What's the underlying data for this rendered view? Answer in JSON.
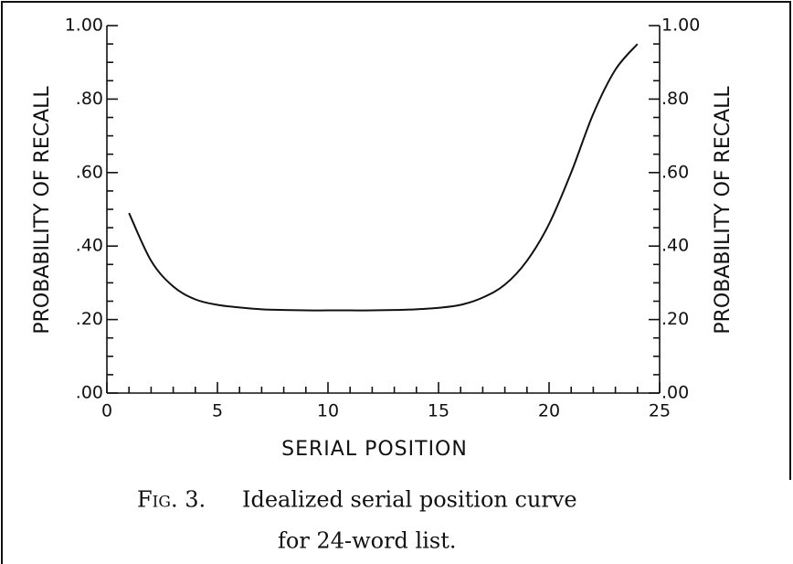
{
  "chart_data": {
    "type": "line",
    "x": [
      1,
      2,
      3,
      4,
      5,
      6,
      7,
      8,
      9,
      10,
      11,
      12,
      13,
      14,
      15,
      16,
      17,
      18,
      19,
      20,
      21,
      22,
      23,
      24
    ],
    "series": [
      {
        "color": "#111111",
        "values": [
          0.49,
          0.36,
          0.29,
          0.255,
          0.24,
          0.233,
          0.228,
          0.226,
          0.225,
          0.225,
          0.225,
          0.225,
          0.226,
          0.228,
          0.232,
          0.24,
          0.26,
          0.295,
          0.36,
          0.46,
          0.6,
          0.76,
          0.88,
          0.95
        ]
      }
    ],
    "xlabel": "SERIAL POSITION",
    "ylabel": "PROBABILITY OF RECALL",
    "y2label": "PROBABILITY OF RECALL",
    "xlim": [
      0,
      25
    ],
    "xticks": [
      0,
      5,
      10,
      15,
      20,
      25
    ],
    "xminorticks": [
      1,
      2,
      3,
      4,
      6,
      7,
      8,
      9,
      11,
      12,
      13,
      14,
      16,
      17,
      18,
      19,
      21,
      22,
      23,
      24
    ],
    "ylim": [
      0,
      1
    ],
    "yticks": [
      {
        "value": 0,
        "label": ".00"
      },
      {
        "value": 0.2,
        "label": ".20"
      },
      {
        "value": 0.4,
        "label": ".40"
      },
      {
        "value": 0.6,
        "label": ".60"
      },
      {
        "value": 0.8,
        "label": ".80"
      },
      {
        "value": 1,
        "label": "1.00"
      }
    ],
    "yminorticks": [
      0.05,
      0.1,
      0.15,
      0.25,
      0.3,
      0.35,
      0.45,
      0.5,
      0.55,
      0.65,
      0.7,
      0.75,
      0.85,
      0.9,
      0.95
    ],
    "caption": {
      "label": "Fig. 3.",
      "lines": [
        "Idealized serial position curve",
        "for 24-word list."
      ]
    }
  }
}
